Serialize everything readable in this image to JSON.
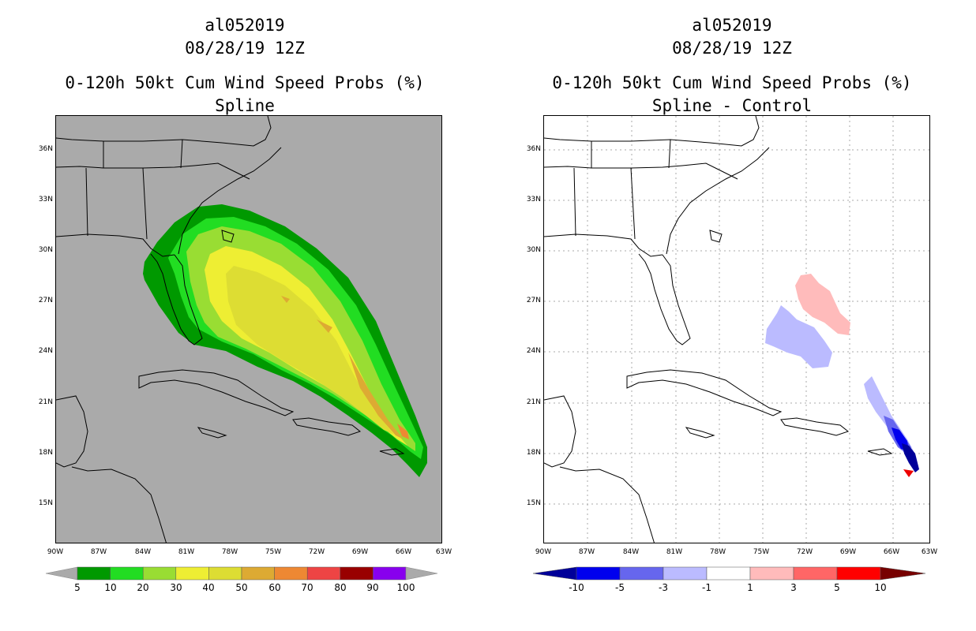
{
  "left": {
    "title_line1": "al052019",
    "title_line2": "08/28/19 12Z",
    "title_line3": "0-120h 50kt Cum Wind Speed Probs (%)",
    "subtitle": "Spline",
    "colorbar": {
      "colors": [
        "#009900",
        "#22dd22",
        "#99dd33",
        "#eeee33",
        "#dddd33",
        "#ddaa33",
        "#ee8833",
        "#ee4444",
        "#990000",
        "#8800ee"
      ],
      "labels": [
        "5",
        "10",
        "20",
        "30",
        "40",
        "50",
        "60",
        "70",
        "80",
        "90",
        "100"
      ]
    }
  },
  "right": {
    "title_line1": "al052019",
    "title_line2": "08/28/19 12Z",
    "title_line3": "0-120h 50kt Cum Wind Speed Probs (%)",
    "subtitle": "Spline - Control",
    "colorbar": {
      "colors": [
        "#000099",
        "#0000ee",
        "#6666ee",
        "#bbbbff",
        "#ffffff",
        "#ffbbbb",
        "#ff6666",
        "#ff0000",
        "#770000"
      ],
      "labels": [
        "-10",
        "-5",
        "-3",
        "-1",
        "1",
        "3",
        "5",
        "10"
      ]
    }
  },
  "axes": {
    "lat_labels": [
      "36N",
      "33N",
      "30N",
      "27N",
      "24N",
      "21N",
      "18N",
      "15N"
    ],
    "lon_labels": [
      "90W",
      "87W",
      "84W",
      "81W",
      "78W",
      "75W",
      "72W",
      "69W",
      "66W",
      "63W"
    ]
  },
  "colors": {
    "land_bg_left": "#aaaaaa",
    "ocean_bg_right": "#ffffff"
  }
}
